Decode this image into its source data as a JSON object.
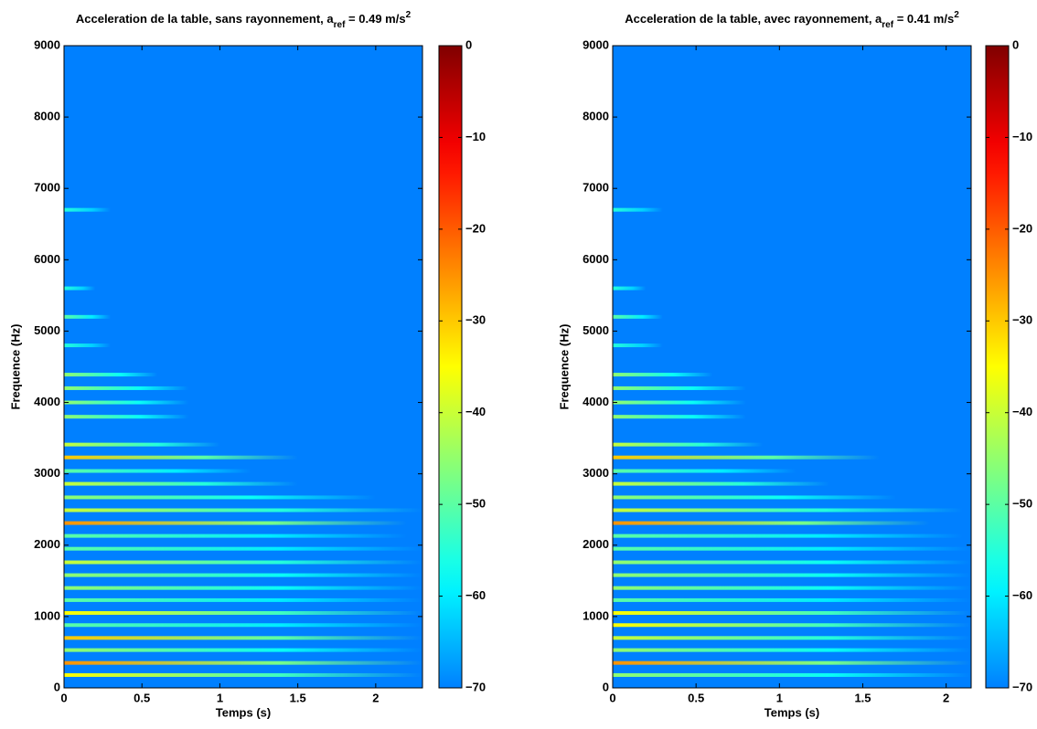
{
  "chart_data": [
    {
      "type": "spectrogram",
      "title": {
        "text": "Acceleration de la table, sans rayonnement, a",
        "sub": "ref",
        "rest": " = 0.49 m/s",
        "sup": "2"
      },
      "xlabel": "Temps (s)",
      "ylabel": "Frequence (Hz)",
      "xlim": [
        0,
        2.3
      ],
      "xticks": [
        0,
        0.5,
        1,
        1.5,
        2
      ],
      "ylim": [
        0,
        9000
      ],
      "yticks": [
        0,
        1000,
        2000,
        3000,
        4000,
        5000,
        6000,
        7000,
        8000,
        9000
      ],
      "clim": [
        -70,
        0
      ],
      "colormap": "jet",
      "cticks": [
        0,
        {
          "value": -10,
          "label": "−10"
        },
        {
          "value": -20,
          "label": "−20"
        },
        {
          "value": -30,
          "label": "−30"
        },
        {
          "value": -40,
          "label": "−40"
        },
        {
          "value": -50,
          "label": "−50"
        },
        {
          "value": -60,
          "label": "−60"
        },
        {
          "value": -70,
          "label": "−70"
        }
      ],
      "partials": {
        "freq": [
          180,
          350,
          530,
          700,
          880,
          1050,
          1230,
          1400,
          1580,
          1760,
          1950,
          2130,
          2310,
          2490,
          2670,
          2860,
          3040,
          3230,
          3410,
          3800,
          4000,
          4200,
          4390,
          4800,
          5200,
          5600,
          6700
        ],
        "duration": [
          2.3,
          2.3,
          2.3,
          2.3,
          2.3,
          2.3,
          2.3,
          2.3,
          2.3,
          2.3,
          2.3,
          2.2,
          2.2,
          2.3,
          2.0,
          1.5,
          1.2,
          1.5,
          1.0,
          0.8,
          0.8,
          0.8,
          0.6,
          0.3,
          0.3,
          0.2,
          0.3
        ],
        "level": [
          -35,
          -25,
          -45,
          -30,
          -50,
          -35,
          -50,
          -45,
          -45,
          -40,
          -50,
          -50,
          -25,
          -40,
          -45,
          -40,
          -50,
          -30,
          -40,
          -45,
          -45,
          -45,
          -45,
          -55,
          -50,
          -55,
          -55
        ]
      }
    },
    {
      "type": "spectrogram",
      "title": {
        "text": "Acceleration de la table, avec rayonnement, a",
        "sub": "ref",
        "rest": " = 0.41 m/s",
        "sup": "2"
      },
      "xlabel": "Temps (s)",
      "ylabel": "Frequence (Hz)",
      "xlim": [
        0,
        2.15
      ],
      "xticks": [
        0,
        0.5,
        1,
        1.5,
        2
      ],
      "ylim": [
        0,
        9000
      ],
      "yticks": [
        0,
        1000,
        2000,
        3000,
        4000,
        5000,
        6000,
        7000,
        8000,
        9000
      ],
      "clim": [
        -70,
        0
      ],
      "colormap": "jet",
      "cticks": [
        0,
        {
          "value": -10,
          "label": "−10"
        },
        {
          "value": -20,
          "label": "−20"
        },
        {
          "value": -30,
          "label": "−30"
        },
        {
          "value": -40,
          "label": "−40"
        },
        {
          "value": -50,
          "label": "−50"
        },
        {
          "value": -60,
          "label": "−60"
        },
        {
          "value": -70,
          "label": "−70"
        }
      ],
      "partials": {
        "freq": [
          180,
          350,
          530,
          700,
          880,
          1050,
          1230,
          1400,
          1580,
          1760,
          1950,
          2130,
          2310,
          2490,
          2670,
          2860,
          3040,
          3230,
          3410,
          3800,
          4000,
          4200,
          4390,
          4800,
          5200,
          5600,
          6700
        ],
        "duration": [
          2.15,
          2.15,
          2.15,
          2.15,
          2.15,
          2.15,
          2.15,
          2.15,
          2.15,
          2.15,
          2.15,
          2.1,
          1.9,
          2.1,
          1.7,
          1.3,
          1.1,
          1.6,
          0.9,
          0.8,
          0.8,
          0.8,
          0.6,
          0.3,
          0.3,
          0.2,
          0.3
        ],
        "level": [
          -45,
          -25,
          -45,
          -40,
          -35,
          -35,
          -50,
          -45,
          -45,
          -45,
          -50,
          -50,
          -25,
          -40,
          -45,
          -40,
          -50,
          -30,
          -40,
          -45,
          -45,
          -45,
          -45,
          -55,
          -50,
          -55,
          -55
        ]
      }
    }
  ]
}
